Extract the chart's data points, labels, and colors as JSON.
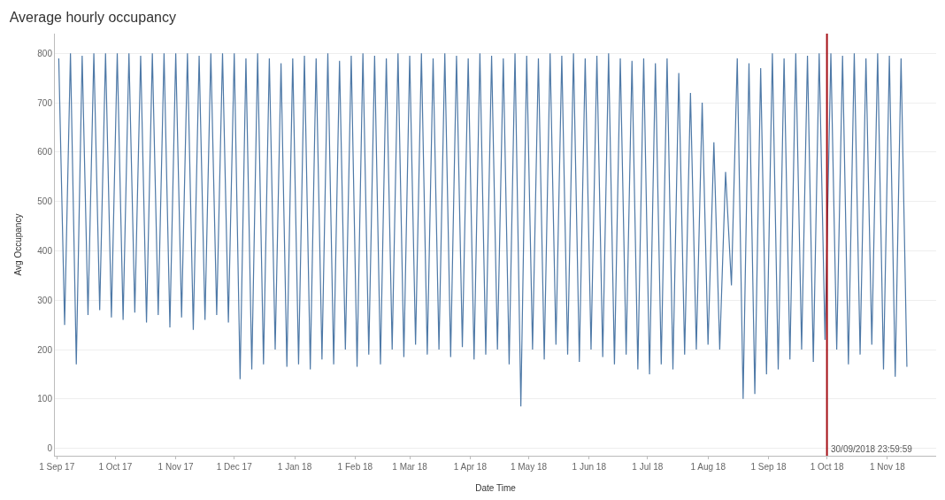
{
  "chart_data": {
    "type": "line",
    "title": "Average hourly occupancy",
    "xlabel": "Date Time",
    "ylabel": "Avg Occupancy",
    "x": [
      "2017-09-02",
      "2017-09-05",
      "2017-09-08",
      "2017-09-11",
      "2017-09-14",
      "2017-09-17",
      "2017-09-20",
      "2017-09-23",
      "2017-09-26",
      "2017-09-29",
      "2017-10-02",
      "2017-10-05",
      "2017-10-08",
      "2017-10-11",
      "2017-10-14",
      "2017-10-17",
      "2017-10-20",
      "2017-10-23",
      "2017-10-26",
      "2017-10-29",
      "2017-11-01",
      "2017-11-04",
      "2017-11-07",
      "2017-11-10",
      "2017-11-13",
      "2017-11-16",
      "2017-11-19",
      "2017-11-22",
      "2017-11-25",
      "2017-11-28",
      "2017-12-01",
      "2017-12-04",
      "2017-12-07",
      "2017-12-10",
      "2017-12-13",
      "2017-12-16",
      "2017-12-19",
      "2017-12-22",
      "2017-12-25",
      "2017-12-28",
      "2017-12-31",
      "2018-01-03",
      "2018-01-06",
      "2018-01-09",
      "2018-01-12",
      "2018-01-15",
      "2018-01-18",
      "2018-01-21",
      "2018-01-24",
      "2018-01-27",
      "2018-01-30",
      "2018-02-02",
      "2018-02-05",
      "2018-02-08",
      "2018-02-11",
      "2018-02-14",
      "2018-02-17",
      "2018-02-20",
      "2018-02-23",
      "2018-02-26",
      "2018-03-01",
      "2018-03-04",
      "2018-03-07",
      "2018-03-10",
      "2018-03-13",
      "2018-03-16",
      "2018-03-19",
      "2018-03-22",
      "2018-03-25",
      "2018-03-28",
      "2018-03-31",
      "2018-04-03",
      "2018-04-06",
      "2018-04-09",
      "2018-04-12",
      "2018-04-15",
      "2018-04-18",
      "2018-04-21",
      "2018-04-24",
      "2018-04-27",
      "2018-04-30",
      "2018-05-03",
      "2018-05-06",
      "2018-05-09",
      "2018-05-12",
      "2018-05-15",
      "2018-05-18",
      "2018-05-21",
      "2018-05-24",
      "2018-05-27",
      "2018-05-30",
      "2018-06-02",
      "2018-06-05",
      "2018-06-08",
      "2018-06-11",
      "2018-06-14",
      "2018-06-17",
      "2018-06-20",
      "2018-06-23",
      "2018-06-26",
      "2018-06-29",
      "2018-07-02",
      "2018-07-05",
      "2018-07-08",
      "2018-07-11",
      "2018-07-14",
      "2018-07-17",
      "2018-07-20",
      "2018-07-23",
      "2018-07-26",
      "2018-07-29",
      "2018-08-01",
      "2018-08-04",
      "2018-08-07",
      "2018-08-10",
      "2018-08-13",
      "2018-08-16",
      "2018-08-19",
      "2018-08-22",
      "2018-08-25",
      "2018-08-28",
      "2018-08-31",
      "2018-09-03",
      "2018-09-06",
      "2018-09-09",
      "2018-09-12",
      "2018-09-15",
      "2018-09-18",
      "2018-09-21",
      "2018-09-24",
      "2018-09-27",
      "2018-09-30",
      "2018-10-03",
      "2018-10-06",
      "2018-10-09",
      "2018-10-12",
      "2018-10-15",
      "2018-10-18",
      "2018-10-21",
      "2018-10-24",
      "2018-10-27",
      "2018-10-30",
      "2018-11-02",
      "2018-11-05",
      "2018-11-08",
      "2018-11-11"
    ],
    "series": [
      {
        "color": "#4e79a7",
        "values": [
          790,
          250,
          800,
          170,
          795,
          270,
          800,
          280,
          800,
          265,
          800,
          260,
          800,
          275,
          795,
          255,
          800,
          270,
          800,
          245,
          800,
          265,
          800,
          240,
          795,
          260,
          800,
          270,
          800,
          255,
          800,
          140,
          790,
          160,
          800,
          170,
          790,
          200,
          780,
          165,
          790,
          170,
          795,
          160,
          790,
          180,
          800,
          170,
          785,
          200,
          795,
          165,
          800,
          190,
          795,
          170,
          790,
          200,
          800,
          185,
          795,
          210,
          800,
          190,
          790,
          200,
          800,
          185,
          795,
          205,
          790,
          180,
          800,
          190,
          795,
          200,
          790,
          170,
          800,
          85,
          795,
          200,
          790,
          180,
          800,
          210,
          795,
          190,
          800,
          175,
          790,
          200,
          795,
          185,
          800,
          170,
          790,
          190,
          785,
          160,
          790,
          150,
          780,
          170,
          790,
          160,
          760,
          190,
          720,
          200,
          700,
          210,
          620,
          200,
          560,
          330,
          790,
          100,
          780,
          110,
          770,
          150,
          800,
          160,
          790,
          180,
          800,
          200,
          795,
          175,
          800,
          220,
          800,
          200,
          795,
          170,
          800,
          190,
          790,
          210,
          800,
          160,
          795,
          145,
          790,
          165
        ]
      }
    ],
    "xlim": [
      "2017-08-31",
      "2018-11-26"
    ],
    "xticks": [
      {
        "value": "2017-09-01",
        "label": "1 Sep 17"
      },
      {
        "value": "2017-10-01",
        "label": "1 Oct 17"
      },
      {
        "value": "2017-11-01",
        "label": "1 Nov 17"
      },
      {
        "value": "2017-12-01",
        "label": "1 Dec 17"
      },
      {
        "value": "2018-01-01",
        "label": "1 Jan 18"
      },
      {
        "value": "2018-02-01",
        "label": "1 Feb 18"
      },
      {
        "value": "2018-03-01",
        "label": "1 Mar 18"
      },
      {
        "value": "2018-04-01",
        "label": "1 Apr 18"
      },
      {
        "value": "2018-05-01",
        "label": "1 May 18"
      },
      {
        "value": "2018-06-01",
        "label": "1 Jun 18"
      },
      {
        "value": "2018-07-01",
        "label": "1 Jul 18"
      },
      {
        "value": "2018-08-01",
        "label": "1 Aug 18"
      },
      {
        "value": "2018-09-01",
        "label": "1 Sep 18"
      },
      {
        "value": "2018-10-01",
        "label": "1 Oct 18"
      },
      {
        "value": "2018-11-01",
        "label": "1 Nov 18"
      }
    ],
    "ylim": [
      -15,
      840
    ],
    "yticks": [
      0,
      100,
      200,
      300,
      400,
      500,
      600,
      700,
      800
    ],
    "ref_lines": [
      {
        "axis": "x",
        "value": "2018-09-30T23:59:59",
        "label": "30/09/2018 23:59:59",
        "color": "#a50f15"
      }
    ],
    "grid": "y"
  }
}
